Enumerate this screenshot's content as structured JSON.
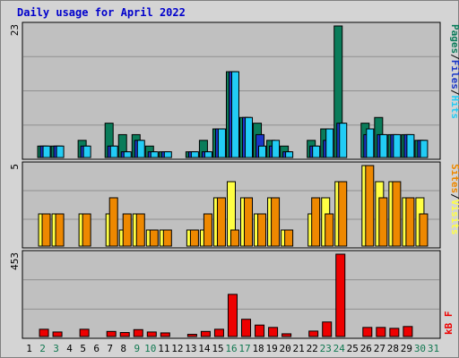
{
  "title": "Daily usage for April 2022",
  "colors": {
    "pages": "#0a7c5a",
    "files": "#1a36c8",
    "hits": "#22ccf5",
    "sites": "#ee8800",
    "visits": "#ffff44",
    "kbytes": "#ee0000",
    "weekend_label": "#107850",
    "weekday_label": "#000000"
  },
  "chart_data": [
    {
      "type": "bar",
      "panel": "top",
      "series_labels": [
        "Pages",
        "/",
        "Files",
        "/",
        "Hits"
      ],
      "ymax_label": "23",
      "ylim": [
        0,
        23
      ],
      "x": [
        1,
        2,
        3,
        4,
        5,
        6,
        7,
        8,
        9,
        10,
        11,
        12,
        13,
        14,
        15,
        16,
        17,
        18,
        19,
        20,
        21,
        22,
        23,
        24,
        25,
        26,
        27,
        28,
        29,
        30,
        31
      ],
      "series": [
        {
          "name": "Pages",
          "values": [
            0,
            2,
            2,
            0,
            3,
            0,
            6,
            4,
            4,
            2,
            1,
            0,
            1,
            3,
            5,
            15,
            7,
            6,
            3,
            2,
            0,
            3,
            5,
            23,
            0,
            6,
            7,
            4,
            4,
            3,
            0
          ]
        },
        {
          "name": "Files",
          "values": [
            0,
            2,
            2,
            0,
            2,
            0,
            2,
            1,
            3,
            1,
            1,
            0,
            1,
            1,
            5,
            15,
            7,
            4,
            2,
            1,
            0,
            2,
            3,
            6,
            0,
            4,
            4,
            4,
            4,
            3,
            0
          ]
        },
        {
          "name": "Hits",
          "values": [
            0,
            2,
            2,
            0,
            2,
            0,
            2,
            1,
            3,
            1,
            1,
            0,
            1,
            1,
            5,
            15,
            7,
            2,
            3,
            1,
            0,
            2,
            5,
            6,
            0,
            5,
            4,
            4,
            4,
            3,
            0
          ]
        }
      ]
    },
    {
      "type": "bar",
      "panel": "middle",
      "series_labels": [
        "Sites",
        "/",
        "Visits"
      ],
      "ymax_label": "5",
      "ylim": [
        0,
        5
      ],
      "x": [
        1,
        2,
        3,
        4,
        5,
        6,
        7,
        8,
        9,
        10,
        11,
        12,
        13,
        14,
        15,
        16,
        17,
        18,
        19,
        20,
        21,
        22,
        23,
        24,
        25,
        26,
        27,
        28,
        29,
        30,
        31
      ],
      "series": [
        {
          "name": "Sites",
          "values": [
            0,
            2,
            2,
            0,
            2,
            0,
            3,
            2,
            2,
            1,
            1,
            0,
            1,
            2,
            3,
            1,
            3,
            2,
            3,
            1,
            0,
            3,
            2,
            4,
            0,
            5,
            3,
            4,
            3,
            2,
            0
          ]
        },
        {
          "name": "Visits",
          "values": [
            0,
            2,
            2,
            0,
            2,
            0,
            2,
            1,
            2,
            1,
            1,
            0,
            1,
            1,
            3,
            4,
            3,
            2,
            3,
            1,
            0,
            2,
            3,
            4,
            0,
            5,
            4,
            4,
            3,
            3,
            0
          ]
        }
      ]
    },
    {
      "type": "bar",
      "panel": "bottom",
      "series_labels": [
        "kB",
        "F"
      ],
      "ymax_label": "453",
      "ylim": [
        0,
        453
      ],
      "x": [
        1,
        2,
        3,
        4,
        5,
        6,
        7,
        8,
        9,
        10,
        11,
        12,
        13,
        14,
        15,
        16,
        17,
        18,
        19,
        20,
        21,
        22,
        23,
        24,
        25,
        26,
        27,
        28,
        29,
        30,
        31
      ],
      "series": [
        {
          "name": "kB F",
          "values": [
            0,
            40,
            25,
            0,
            40,
            0,
            28,
            22,
            38,
            25,
            20,
            0,
            12,
            28,
            40,
            232,
            95,
            63,
            50,
            15,
            0,
            30,
            80,
            453,
            0,
            50,
            50,
            45,
            55,
            0,
            0
          ]
        }
      ]
    }
  ],
  "x_labels": [
    "1",
    "2",
    "3",
    "4",
    "5",
    "6",
    "7",
    "8",
    "9",
    "10",
    "11",
    "12",
    "13",
    "14",
    "15",
    "16",
    "17",
    "18",
    "19",
    "20",
    "21",
    "22",
    "23",
    "24",
    "25",
    "26",
    "27",
    "28",
    "29",
    "30",
    "31"
  ],
  "weekend_days": [
    2,
    3,
    9,
    10,
    16,
    17,
    23,
    24,
    30,
    31
  ]
}
